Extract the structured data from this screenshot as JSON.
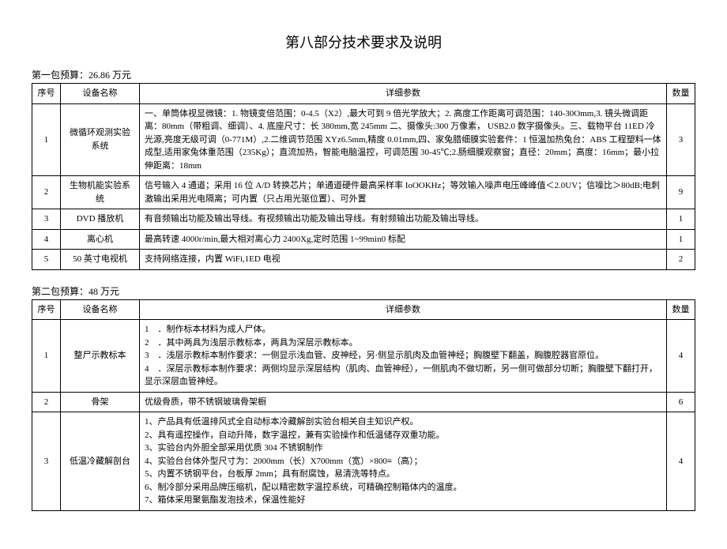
{
  "title": "第八部分技术要求及说明",
  "packages": [
    {
      "budget_line": "第一包预算：26.86 万元",
      "headers": {
        "seq": "序号",
        "name": "设备名称",
        "details": "详细参数",
        "qty": "数量"
      },
      "rows": [
        {
          "seq": "1",
          "name": "微循环观测实验系统",
          "details": "一、单筒体视显微镜：1. 物镜变倍范围：0-4.5（X2）,最大可到 9 倍光学放大；2. 高度工作距离可调范围：140-30Omm,3. 镜头微调距离：80mm（带粗调、细调）、4. 底座尺寸：长 380mm,宽 245mm 二、摄像头:300 万像素， USB2.0 数字摄像头。三、载物平台 11ED 冷光源,亮度无级可调（0-771M）,2.二维调节范围 XYz6.5mm,精度 0.01mm,四、家兔腊细膜实验套件：1 恒温加热兔台：ABS 工程塑料一体成型,适用家兔体重范围（235Kg）；直流加热，智能电脑温控，可调范围 30-45℃;2.肠细膜观察窗；直径：20mm；高度：16mm；最小拉伸距离：18mm",
          "qty": "3"
        },
        {
          "seq": "2",
          "name": "生物机能实验系统",
          "details": "信号输入 4 通道；采用 16 位 A/D 转换芯片；单通道硬件最高采样率 IoOOKHz；等效输入噪声电压峰峰值＜2.0UV；信噪比＞80dB;电刺激输出采用光电隔离；可内置（只占用光驱位置）、可外置",
          "qty": "9"
        },
        {
          "seq": "3",
          "name": "DVD 播放机",
          "details": "有音频输出功能及输出导线。有视频输出功能及输出导线。有射频输出功能及输出导线。",
          "qty": "1"
        },
        {
          "seq": "4",
          "name": "离心机",
          "details": "最高转速 4000r/min,最大相对离心力 2400Xg,定时范围 1~99min0 标配",
          "qty": "1"
        },
        {
          "seq": "5",
          "name": "50 英寸电视机",
          "details": "支持网络连接，内置 WiFi,1ED 电视",
          "qty": "2"
        }
      ]
    },
    {
      "budget_line": "第二包预算：48 万元",
      "headers": {
        "seq": "序号",
        "name": "设备名称",
        "details": "详细参数",
        "qty": "数量"
      },
      "rows": [
        {
          "seq": "1",
          "name": "整尸示教标本",
          "details_list": [
            "．制作标本材料为成人尸体。",
            "．其中两具为浅层示教标本，两具为深层示教标本。",
            "．浅层示教标本制作要求：一侧显示浅血管、皮神经，另·侧显示肌肉及血管神经；胸腹壁下翻盖，胸腹腔器官原位。",
            "．深层示教标本制作要求：两侧均显示深层结构（肌肉、血管神经），一侧肌肉不做切断，另一侧可做部分切断；胸腹壁下翻打开，显示深层血管神经。"
          ],
          "qty": "4"
        },
        {
          "seq": "2",
          "name": "骨架",
          "details": "优级骨质，带不锈钢玻璃骨架橱",
          "qty": "6"
        },
        {
          "seq": "3",
          "name": "低温冷藏解剖台",
          "details_lines": [
            "1、产品具有低温排风式全自动标本冷藏解剖实验台相关自主知识产权。",
            "2、具有遥控操作，自动升降，数字温控，兼有实验操作和低温储存双重功能。",
            "3、实验台内外胆全部采用优质 304 不锈钢制作",
            "4、实验台台体外型尺寸为：2000mm（长）X700mm（宽）×800≡（高）；",
            "5、内置不锈钢平台，台板厚 2mm；具有耐腐蚀，易清洗等特点。",
            "6、制冷部分采用品牌压缩机，配以精密数字温控系统，可精确控制箱体内的温度。",
            "7、箱体采用聚氨酯发泡技术，保温性能好"
          ],
          "qty": "4"
        }
      ]
    }
  ]
}
